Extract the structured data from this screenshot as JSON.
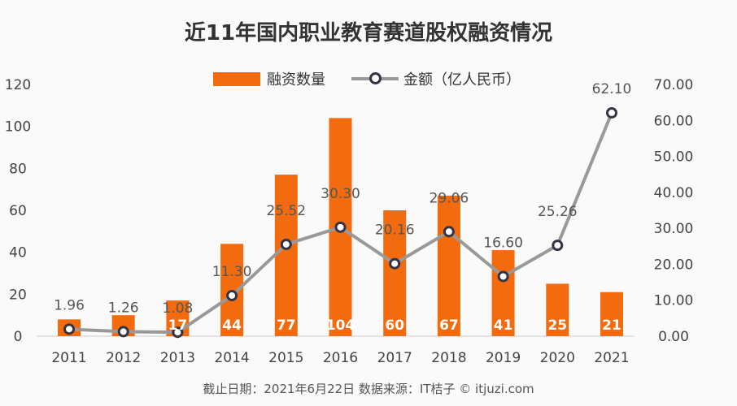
{
  "chart_data": {
    "type": "bar+line",
    "title": "近11年国内职业教育赛道股权融资情况",
    "categories": [
      "2011",
      "2012",
      "2013",
      "2014",
      "2015",
      "2016",
      "2017",
      "2018",
      "2019",
      "2020",
      "2021"
    ],
    "series": [
      {
        "name": "融资数量",
        "type": "bar",
        "axis": "left",
        "color": "#f26b0f",
        "values": [
          8,
          10,
          17,
          44,
          77,
          104,
          60,
          67,
          41,
          25,
          21
        ],
        "labels": [
          "",
          "",
          "17",
          "44",
          "77",
          "104",
          "60",
          "67",
          "41",
          "25",
          "21"
        ]
      },
      {
        "name": "金额（亿人民币）",
        "type": "line",
        "axis": "right",
        "color": "#999999",
        "values": [
          1.96,
          1.26,
          1.08,
          11.3,
          25.52,
          30.3,
          20.16,
          29.06,
          16.6,
          25.26,
          62.1
        ],
        "labels": [
          "1.96",
          "1.26",
          "1.08",
          "11.30",
          "25.52",
          "30.30",
          "20.16",
          "29.06",
          "16.60",
          "25.26",
          "62.10"
        ]
      }
    ],
    "left_axis": {
      "ylim": [
        0,
        120
      ],
      "ticks": [
        "0",
        "20",
        "40",
        "60",
        "80",
        "100",
        "120"
      ]
    },
    "right_axis": {
      "ylim": [
        0,
        70
      ],
      "ticks": [
        "0.00",
        "10.00",
        "20.00",
        "30.00",
        "40.00",
        "50.00",
        "60.00",
        "70.00"
      ]
    },
    "legend": "top-center",
    "grid": false
  },
  "footer": "截止日期：2021年6月22日    数据来源：IT桔子 © itjuzi.com"
}
